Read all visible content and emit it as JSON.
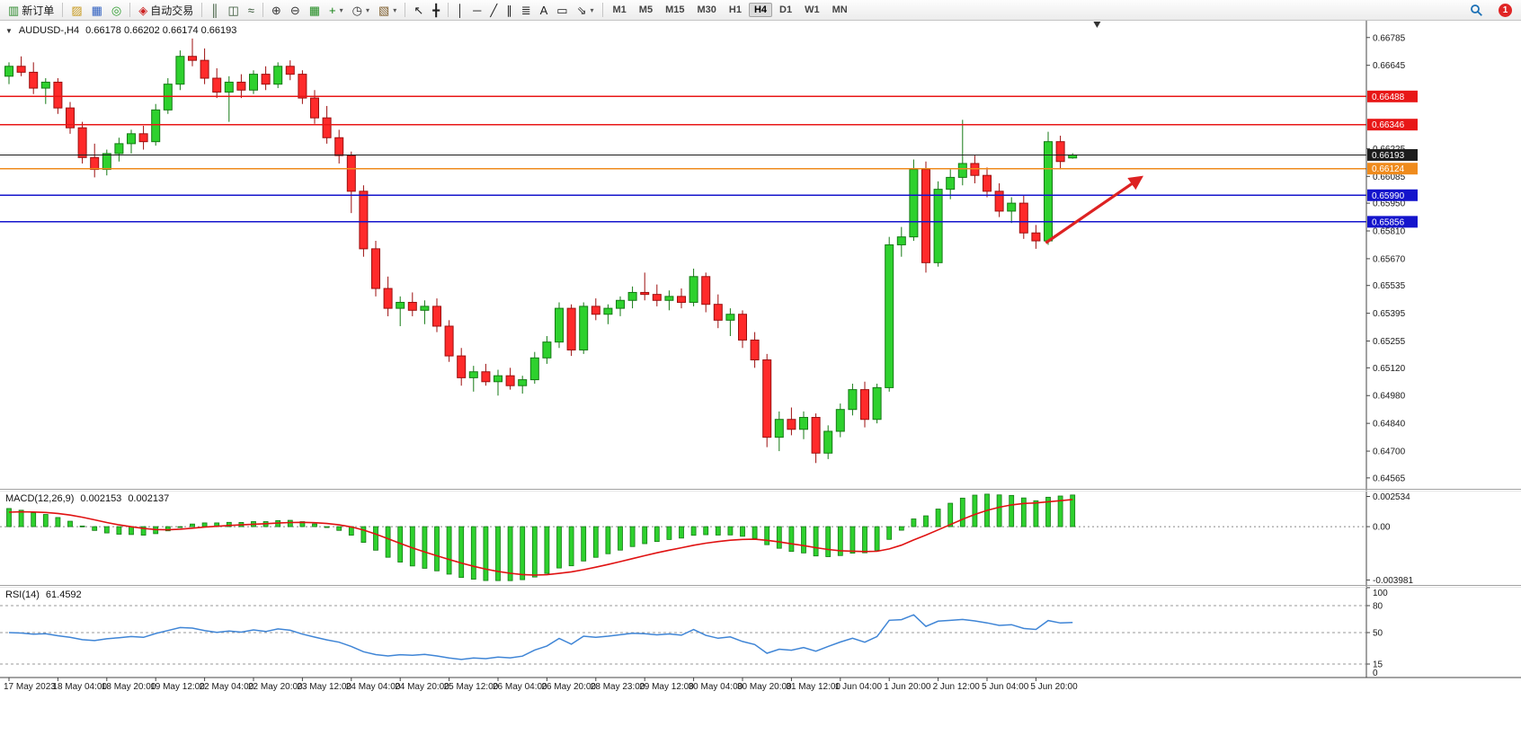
{
  "toolbar": {
    "caret_glyph": "▾",
    "notification_count": "1",
    "timeframes": [
      "M1",
      "M5",
      "M15",
      "M30",
      "H1",
      "H4",
      "D1",
      "W1",
      "MN"
    ],
    "active_timeframe": "H4",
    "items": [
      {
        "name": "new-order-button",
        "glyph": "▥",
        "color": "#2e8a2e",
        "label": "新订单"
      },
      {
        "sep": true
      },
      {
        "name": "layouts-icon",
        "glyph": "▨",
        "color": "#c89a1e"
      },
      {
        "name": "market-watch-icon",
        "glyph": "▦",
        "color": "#2f5fc0"
      },
      {
        "name": "refresh-icon",
        "glyph": "◎",
        "color": "#2a9a2a"
      },
      {
        "sep": true
      },
      {
        "name": "auto-trading-button",
        "glyph": "◈",
        "color": "#cc2020",
        "label": "自动交易"
      },
      {
        "sep": true
      },
      {
        "name": "bar-chart-icon",
        "glyph": "║",
        "color": "#2f4f2f"
      },
      {
        "name": "candlestick-chart-icon",
        "glyph": "◫",
        "color": "#2f4f2f"
      },
      {
        "name": "line-chart-icon",
        "glyph": "≈",
        "color": "#2f4f2f"
      },
      {
        "sep": true
      },
      {
        "name": "zoom-in-icon",
        "glyph": "⊕",
        "color": "#353535"
      },
      {
        "name": "zoom-out-icon",
        "glyph": "⊖",
        "color": "#353535"
      },
      {
        "name": "tile-windows-icon",
        "glyph": "▦",
        "color": "#1f8a1f"
      },
      {
        "name": "indicators-icon",
        "glyph": "+",
        "color": "#0f7f0f",
        "caret": true
      },
      {
        "name": "periods-icon",
        "glyph": "◷",
        "color": "#353535",
        "caret": true
      },
      {
        "name": "templates-icon",
        "glyph": "▧",
        "color": "#7f5f2f",
        "caret": true
      },
      {
        "sep": true
      },
      {
        "name": "cursor-icon",
        "glyph": "↖",
        "color": "#202020"
      },
      {
        "name": "crosshair-icon",
        "glyph": "╋",
        "color": "#202020"
      },
      {
        "sep": true
      },
      {
        "name": "vertical-line-icon",
        "glyph": "│",
        "color": "#202020"
      },
      {
        "name": "horizontal-line-icon",
        "glyph": "─",
        "color": "#202020"
      },
      {
        "name": "trendline-icon",
        "glyph": "╱",
        "color": "#202020"
      },
      {
        "name": "equidistant-channel-icon",
        "glyph": "∥",
        "color": "#202020"
      },
      {
        "name": "fibonacci-icon",
        "glyph": "≣",
        "color": "#202020"
      },
      {
        "name": "text-icon",
        "glyph": "A",
        "color": "#202020"
      },
      {
        "name": "text-label-icon",
        "glyph": "▭",
        "color": "#202020"
      },
      {
        "name": "arrows-tool-icon",
        "glyph": "⇘",
        "color": "#202020",
        "caret": true
      },
      {
        "sep": true
      }
    ]
  },
  "chart_data": {
    "type": "candlestick",
    "symbol_period_label": "AUDUSD-,H4",
    "ohlc_label": "0.66178 0.66202 0.66174 0.66193",
    "collapse_glyph": "▼",
    "ylim": [
      0.6451,
      0.6687
    ],
    "bars_per_label": 4,
    "shift_marker_bar": 89,
    "colors": {
      "up": "#2ed12e",
      "up_stroke": "#157a15",
      "down": "#ff2a2a",
      "down_stroke": "#9c0f0f",
      "macd_hist": "#2ed12e",
      "macd_hist_stroke": "#157a15",
      "macd_signal": "#e01212",
      "rsi_line": "#3f85d6"
    },
    "candles": [
      [
        0.6659,
        0.6666,
        0.6655,
        0.6664
      ],
      [
        0.6664,
        0.6669,
        0.6659,
        0.6661
      ],
      [
        0.6661,
        0.6666,
        0.665,
        0.6653
      ],
      [
        0.6653,
        0.6658,
        0.6645,
        0.6656
      ],
      [
        0.6656,
        0.6658,
        0.664,
        0.6643
      ],
      [
        0.6643,
        0.6646,
        0.663,
        0.6633
      ],
      [
        0.6633,
        0.6636,
        0.6615,
        0.6618
      ],
      [
        0.6618,
        0.6625,
        0.6608,
        0.6612
      ],
      [
        0.6612,
        0.6622,
        0.6609,
        0.662
      ],
      [
        0.662,
        0.6628,
        0.6616,
        0.6625
      ],
      [
        0.6625,
        0.6632,
        0.662,
        0.663
      ],
      [
        0.663,
        0.6634,
        0.6622,
        0.6626
      ],
      [
        0.6626,
        0.6645,
        0.6624,
        0.6642
      ],
      [
        0.6642,
        0.6658,
        0.664,
        0.6655
      ],
      [
        0.6655,
        0.6672,
        0.6652,
        0.6669
      ],
      [
        0.6669,
        0.6678,
        0.6664,
        0.6667
      ],
      [
        0.6667,
        0.6673,
        0.6655,
        0.6658
      ],
      [
        0.6658,
        0.6663,
        0.6648,
        0.6651
      ],
      [
        0.6651,
        0.6659,
        0.6636,
        0.6656
      ],
      [
        0.6656,
        0.666,
        0.6648,
        0.6652
      ],
      [
        0.6652,
        0.6662,
        0.665,
        0.666
      ],
      [
        0.666,
        0.6664,
        0.6652,
        0.6655
      ],
      [
        0.6655,
        0.6666,
        0.6653,
        0.6664
      ],
      [
        0.6664,
        0.6667,
        0.6657,
        0.666
      ],
      [
        0.666,
        0.6662,
        0.6645,
        0.6648
      ],
      [
        0.6648,
        0.6652,
        0.6635,
        0.6638
      ],
      [
        0.6638,
        0.6644,
        0.6625,
        0.6628
      ],
      [
        0.6628,
        0.6632,
        0.6615,
        0.6619
      ],
      [
        0.6619,
        0.6621,
        0.659,
        0.6601
      ],
      [
        0.6601,
        0.6604,
        0.6568,
        0.6572
      ],
      [
        0.6572,
        0.6576,
        0.6548,
        0.6552
      ],
      [
        0.6552,
        0.6558,
        0.6538,
        0.6542
      ],
      [
        0.6542,
        0.6548,
        0.6533,
        0.6545
      ],
      [
        0.6545,
        0.655,
        0.6538,
        0.6541
      ],
      [
        0.6541,
        0.6546,
        0.6534,
        0.6543
      ],
      [
        0.6543,
        0.6547,
        0.653,
        0.6533
      ],
      [
        0.6533,
        0.6536,
        0.6515,
        0.6518
      ],
      [
        0.6518,
        0.6522,
        0.6503,
        0.6507
      ],
      [
        0.6507,
        0.6513,
        0.65,
        0.651
      ],
      [
        0.651,
        0.6514,
        0.6503,
        0.6505
      ],
      [
        0.6505,
        0.6511,
        0.6498,
        0.6508
      ],
      [
        0.6508,
        0.6512,
        0.6501,
        0.6503
      ],
      [
        0.6503,
        0.6508,
        0.6499,
        0.6506
      ],
      [
        0.6506,
        0.652,
        0.6504,
        0.6517
      ],
      [
        0.6517,
        0.6528,
        0.6514,
        0.6525
      ],
      [
        0.6525,
        0.6545,
        0.6522,
        0.6542
      ],
      [
        0.6542,
        0.6544,
        0.6518,
        0.6521
      ],
      [
        0.6521,
        0.6545,
        0.6519,
        0.6543
      ],
      [
        0.6543,
        0.6547,
        0.6536,
        0.6539
      ],
      [
        0.6539,
        0.6544,
        0.6534,
        0.6542
      ],
      [
        0.6542,
        0.6548,
        0.6538,
        0.6546
      ],
      [
        0.6546,
        0.6553,
        0.6542,
        0.655
      ],
      [
        0.655,
        0.656,
        0.6546,
        0.6549
      ],
      [
        0.6549,
        0.6554,
        0.6543,
        0.6546
      ],
      [
        0.6546,
        0.6551,
        0.6541,
        0.6548
      ],
      [
        0.6548,
        0.6552,
        0.6542,
        0.6545
      ],
      [
        0.6545,
        0.6562,
        0.6543,
        0.6558
      ],
      [
        0.6558,
        0.656,
        0.654,
        0.6544
      ],
      [
        0.6544,
        0.6549,
        0.6532,
        0.6536
      ],
      [
        0.6536,
        0.6542,
        0.6528,
        0.6539
      ],
      [
        0.6539,
        0.6541,
        0.6522,
        0.6526
      ],
      [
        0.6526,
        0.653,
        0.6512,
        0.6516
      ],
      [
        0.6516,
        0.6519,
        0.6472,
        0.6477
      ],
      [
        0.6477,
        0.649,
        0.647,
        0.6486
      ],
      [
        0.6486,
        0.6492,
        0.6478,
        0.6481
      ],
      [
        0.6481,
        0.649,
        0.6476,
        0.6487
      ],
      [
        0.6487,
        0.6489,
        0.6464,
        0.6469
      ],
      [
        0.6469,
        0.6483,
        0.6466,
        0.648
      ],
      [
        0.648,
        0.6494,
        0.6477,
        0.6491
      ],
      [
        0.6491,
        0.6504,
        0.6488,
        0.6501
      ],
      [
        0.6501,
        0.6505,
        0.6482,
        0.6486
      ],
      [
        0.6486,
        0.6504,
        0.6484,
        0.6502
      ],
      [
        0.6502,
        0.6578,
        0.65,
        0.6574
      ],
      [
        0.6574,
        0.6583,
        0.6568,
        0.6578
      ],
      [
        0.6578,
        0.6617,
        0.6576,
        0.6612
      ],
      [
        0.6612,
        0.6616,
        0.656,
        0.6565
      ],
      [
        0.6565,
        0.6606,
        0.6563,
        0.6602
      ],
      [
        0.6602,
        0.6612,
        0.6597,
        0.6608
      ],
      [
        0.6608,
        0.6637,
        0.6604,
        0.6615
      ],
      [
        0.6615,
        0.6619,
        0.6605,
        0.6609
      ],
      [
        0.6609,
        0.6613,
        0.6598,
        0.6601
      ],
      [
        0.6601,
        0.6605,
        0.6588,
        0.6591
      ],
      [
        0.6591,
        0.6598,
        0.6585,
        0.6595
      ],
      [
        0.6595,
        0.6599,
        0.6577,
        0.658
      ],
      [
        0.658,
        0.6584,
        0.6572,
        0.6576
      ],
      [
        0.6576,
        0.6631,
        0.6574,
        0.6626
      ],
      [
        0.6626,
        0.6629,
        0.6612,
        0.6616
      ],
      [
        0.66178,
        0.66202,
        0.66174,
        0.66193
      ]
    ],
    "y_ticks": [
      {
        "v": 0.66785,
        "t": "0.66785"
      },
      {
        "v": 0.66645,
        "t": "0.66645"
      },
      {
        "v": 0.66225,
        "t": "0.66225"
      },
      {
        "v": 0.66085,
        "t": "0.66085"
      },
      {
        "v": 0.6595,
        "t": "0.65950"
      },
      {
        "v": 0.6581,
        "t": "0.65810"
      },
      {
        "v": 0.6567,
        "t": "0.65670"
      },
      {
        "v": 0.65535,
        "t": "0.65535"
      },
      {
        "v": 0.65395,
        "t": "0.65395"
      },
      {
        "v": 0.65255,
        "t": "0.65255"
      },
      {
        "v": 0.6512,
        "t": "0.65120"
      },
      {
        "v": 0.6498,
        "t": "0.64980"
      },
      {
        "v": 0.6484,
        "t": "0.64840"
      },
      {
        "v": 0.647,
        "t": "0.64700"
      },
      {
        "v": 0.64565,
        "t": "0.64565"
      }
    ],
    "levels": [
      {
        "v": 0.66488,
        "t": "0.66488",
        "color": "#e81717",
        "width": 1.6
      },
      {
        "v": 0.66346,
        "t": "0.66346",
        "color": "#e81717",
        "width": 1.6
      },
      {
        "v": 0.66193,
        "t": "0.66193",
        "color": "#1c1c1c",
        "width": 1
      },
      {
        "v": 0.66124,
        "t": "0.66124",
        "color": "#ef8b1d",
        "width": 1.6
      },
      {
        "v": 0.6599,
        "t": "0.65990",
        "color": "#1414cc",
        "width": 1.6
      },
      {
        "v": 0.65856,
        "t": "0.65856",
        "color": "#1414cc",
        "width": 1.6
      }
    ],
    "time_labels": [
      "17 May 2023",
      "18 May 04:00",
      "18 May 20:00",
      "19 May 12:00",
      "22 May 04:00",
      "22 May 20:00",
      "23 May 12:00",
      "24 May 04:00",
      "24 May 20:00",
      "25 May 12:00",
      "26 May 04:00",
      "26 May 20:00",
      "28 May 23:00",
      "29 May 12:00",
      "30 May 04:00",
      "30 May 20:00",
      "31 May 12:00",
      "1 Jun 04:00",
      "1 Jun 20:00",
      "2 Jun 12:00",
      "5 Jun 04:00",
      "5 Jun 20:00"
    ],
    "annotations": [
      {
        "type": "arrow",
        "from_bar": 84.8,
        "from_price": 0.6575,
        "to_bar": 92.6,
        "to_price": 0.6608,
        "color": "#dd2222"
      }
    ],
    "macd": {
      "title": "MACD(12,26,9)",
      "value_main": "0.002153",
      "value_signal": "0.002137",
      "params": {
        "fast": 12,
        "slow": 26,
        "signal": 9
      },
      "axis": [
        {
          "t": "0.002534",
          "at": "top"
        },
        {
          "t": "0.00",
          "at": "zero"
        },
        {
          "t": "-0.003981",
          "at": "bottom"
        }
      ]
    },
    "rsi": {
      "title": "RSI(14)",
      "value": "61.4592",
      "period": 14,
      "ylim": [
        0,
        100
      ],
      "levels": [
        80,
        50,
        15
      ],
      "axis": [
        {
          "v": 100,
          "t": "100"
        },
        {
          "v": 80,
          "t": "80"
        },
        {
          "v": 50,
          "t": "50"
        },
        {
          "v": 15,
          "t": "15"
        },
        {
          "v": 0,
          "t": "0"
        }
      ]
    }
  }
}
